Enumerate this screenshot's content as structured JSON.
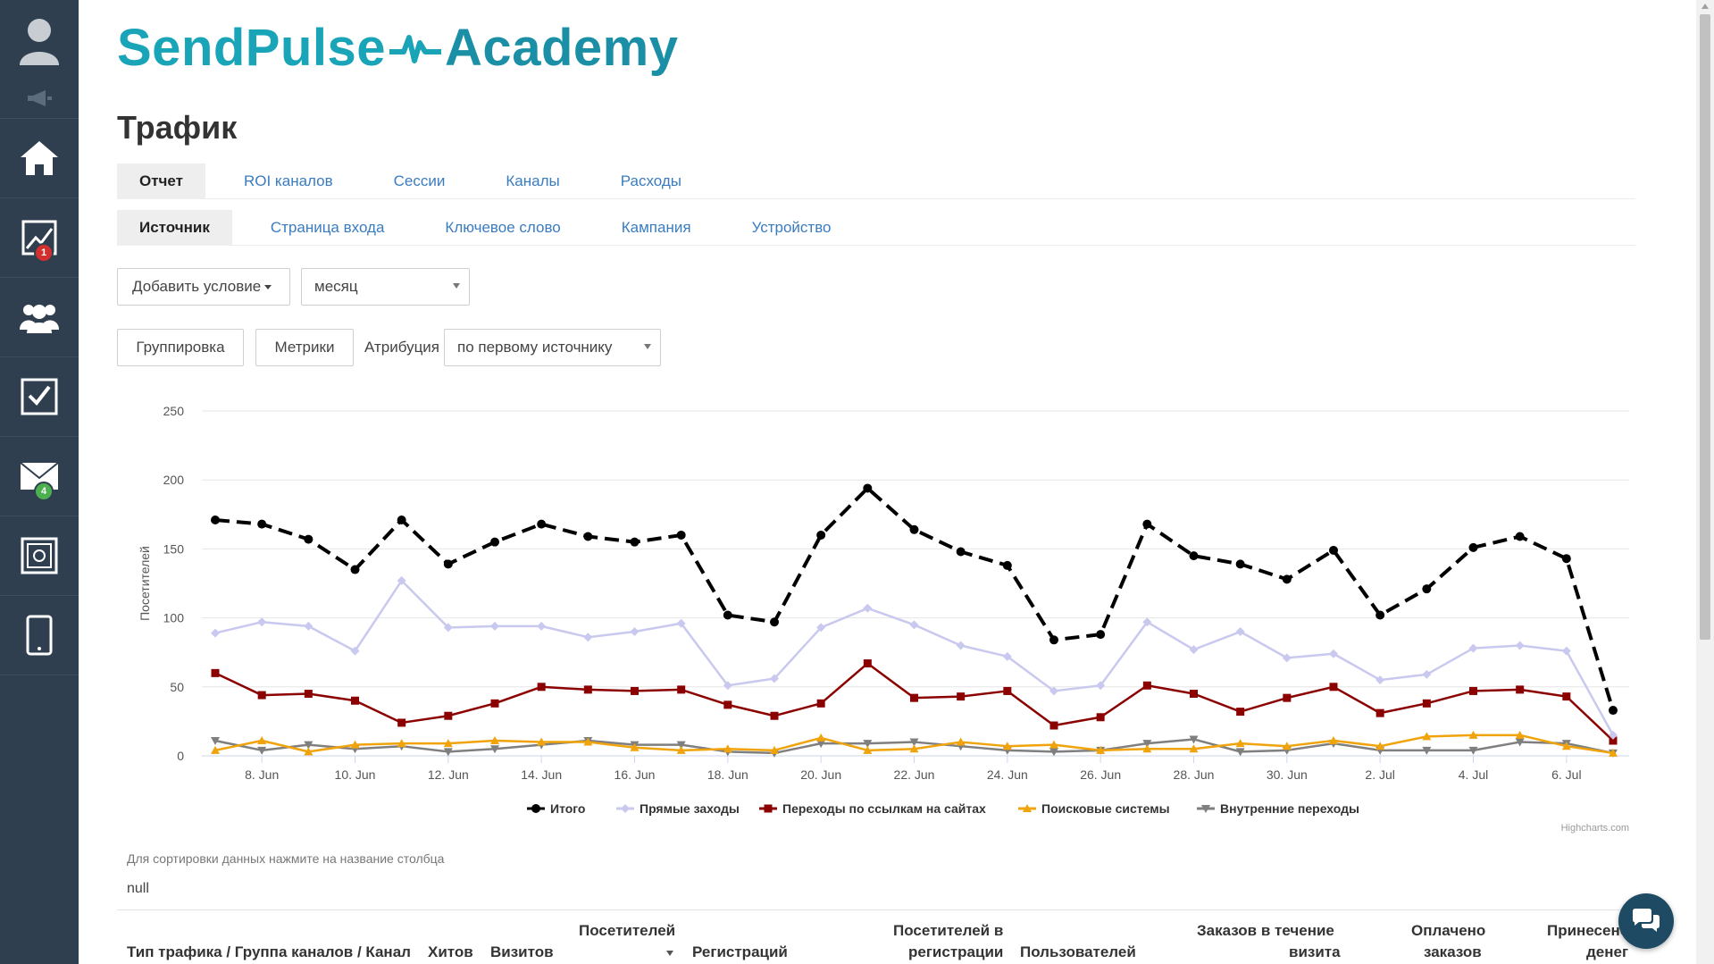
{
  "sidebar": {
    "items": [
      {
        "icon": "user-avatar-icon"
      },
      {
        "icon": "megaphone-icon"
      },
      {
        "icon": "home-icon"
      },
      {
        "icon": "chart-icon",
        "badge": "1",
        "badge_color": "#d32f2f"
      },
      {
        "icon": "users-icon"
      },
      {
        "icon": "checkbox-icon"
      },
      {
        "icon": "mail-icon",
        "badge": "4",
        "badge_color": "#4caf50"
      },
      {
        "icon": "safe-icon"
      },
      {
        "icon": "mobile-icon"
      }
    ]
  },
  "brand": {
    "part1": "SendPulse",
    "part2": "Academy",
    "color": "#1aa4b8"
  },
  "page": {
    "title": "Трафик"
  },
  "tabs_main": [
    "Отчет",
    "ROI каналов",
    "Сессии",
    "Каналы",
    "Расходы"
  ],
  "tabs_sub": [
    "Источник",
    "Страница входа",
    "Ключевое слово",
    "Кампания",
    "Устройство"
  ],
  "filters": {
    "add_condition": "Добавить условие",
    "period_value": "месяц"
  },
  "controls": {
    "grouping": "Группировка",
    "metrics": "Метрики",
    "attribution_label": "Атрибуция",
    "attribution_value": "по первому источнику"
  },
  "chart_data": {
    "type": "line",
    "ylabel": "Посетителей",
    "ylim": [
      0,
      250
    ],
    "yticks": [
      0,
      50,
      100,
      150,
      200,
      250
    ],
    "x": [
      "7. Jun",
      "8. Jun",
      "9. Jun",
      "10. Jun",
      "11. Jun",
      "12. Jun",
      "13. Jun",
      "14. Jun",
      "15. Jun",
      "16. Jun",
      "17. Jun",
      "18. Jun",
      "19. Jun",
      "20. Jun",
      "21. Jun",
      "22. Jun",
      "23. Jun",
      "24. Jun",
      "25. Jun",
      "26. Jun",
      "27. Jun",
      "28. Jun",
      "29. Jun",
      "30. Jun",
      "1. Jul",
      "2. Jul",
      "3. Jul",
      "4. Jul",
      "5. Jul",
      "6. Jul",
      "7. Jul"
    ],
    "xtick_labels": [
      "8. Jun",
      "10. Jun",
      "12. Jun",
      "14. Jun",
      "16. Jun",
      "18. Jun",
      "20. Jun",
      "22. Jun",
      "24. Jun",
      "26. Jun",
      "28. Jun",
      "30. Jun",
      "2. Jul",
      "4. Jul",
      "6. Jul"
    ],
    "legend_position": "bottom-center",
    "credit": "Highcharts.com",
    "series": [
      {
        "name": "Итого",
        "color": "#000000",
        "marker": "circle",
        "dash": true,
        "values": [
          171,
          168,
          157,
          135,
          171,
          139,
          155,
          168,
          159,
          155,
          160,
          102,
          97,
          160,
          194,
          164,
          148,
          138,
          84,
          88,
          168,
          145,
          139,
          128,
          149,
          102,
          121,
          151,
          159,
          143,
          33
        ]
      },
      {
        "name": "Прямые заходы",
        "color": "#c9c9ef",
        "marker": "diamond",
        "dash": false,
        "values": [
          89,
          97,
          94,
          76,
          127,
          93,
          94,
          94,
          86,
          90,
          96,
          51,
          56,
          93,
          107,
          95,
          80,
          72,
          47,
          51,
          97,
          77,
          90,
          71,
          74,
          55,
          59,
          78,
          80,
          76,
          15
        ]
      },
      {
        "name": "Переходы по ссылкам на сайтах",
        "color": "#8b0000",
        "marker": "square",
        "dash": false,
        "values": [
          60,
          44,
          45,
          40,
          24,
          29,
          38,
          50,
          48,
          47,
          48,
          37,
          29,
          38,
          67,
          42,
          43,
          47,
          22,
          28,
          51,
          45,
          32,
          42,
          50,
          31,
          38,
          47,
          48,
          43,
          11
        ]
      },
      {
        "name": "Поисковые системы",
        "color": "#f0a30a",
        "marker": "triangle",
        "dash": false,
        "values": [
          4,
          11,
          3,
          8,
          9,
          9,
          11,
          10,
          10,
          6,
          4,
          5,
          4,
          13,
          4,
          5,
          10,
          7,
          8,
          4,
          5,
          5,
          9,
          7,
          11,
          7,
          14,
          15,
          15,
          7,
          2
        ]
      },
      {
        "name": "Внутренние переходы",
        "color": "#7f7f7f",
        "marker": "triangle-down",
        "dash": false,
        "values": [
          11,
          4,
          8,
          5,
          7,
          3,
          5,
          8,
          11,
          8,
          8,
          3,
          2,
          9,
          9,
          10,
          7,
          4,
          3,
          4,
          9,
          12,
          3,
          4,
          9,
          4,
          4,
          4,
          10,
          9,
          2
        ]
      }
    ]
  },
  "table": {
    "hint": "Для сортировки данных нажмите на название столбца",
    "null_text": "null",
    "headers": {
      "h0": "Тип трафика / Группа каналов / Канал",
      "h1": "Хитов",
      "h2": "Визитов",
      "h3": "Посетителей",
      "h4": "Регистраций",
      "h5a": "Посетителей в",
      "h5b": "регистрации",
      "h6": "Пользователей",
      "h7a": "Заказов в течение",
      "h7b": "визита",
      "h8a": "Оплачено",
      "h8b": "заказов",
      "h9a": "Принесено",
      "h9b": "денег"
    }
  },
  "chat": {
    "icon": "chat-bubbles-icon"
  }
}
